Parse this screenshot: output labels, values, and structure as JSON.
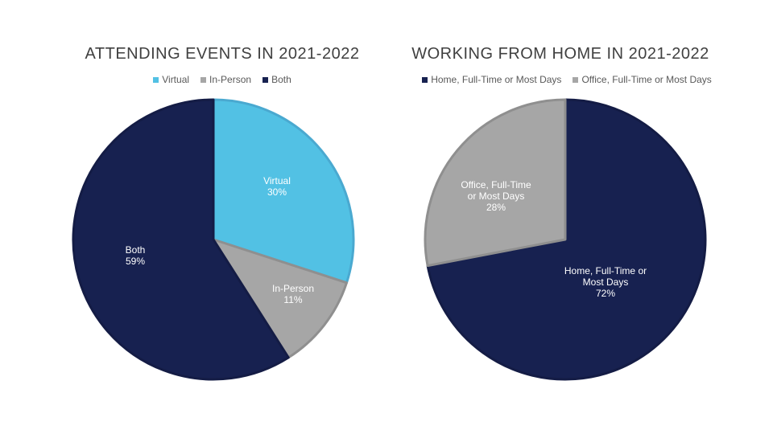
{
  "chart_data": [
    {
      "type": "pie",
      "title": "ATTENDING EVENTS IN 2021-2022",
      "legend_position": "top",
      "slices": [
        {
          "label": "Virtual",
          "value": 30,
          "color": "#52c1e4",
          "label_lines": [
            "Virtual",
            "30%"
          ]
        },
        {
          "label": "In-Person",
          "value": 11,
          "color": "#a6a6a6",
          "label_lines": [
            "In-Person",
            "11%"
          ]
        },
        {
          "label": "Both",
          "value": 59,
          "color": "#172150",
          "label_lines": [
            "Both",
            "59%"
          ]
        }
      ]
    },
    {
      "type": "pie",
      "title": "WORKING FROM HOME IN 2021-2022",
      "legend_position": "top",
      "slices": [
        {
          "label": "Home, Full-Time or Most Days",
          "value": 72,
          "color": "#172150",
          "label_lines": [
            "Home, Full-Time or",
            "Most Days",
            "72%"
          ]
        },
        {
          "label": "Office, Full-Time or Most Days",
          "value": 28,
          "color": "#a6a6a6",
          "label_lines": [
            "Office, Full-Time",
            "or Most Days",
            "28%"
          ]
        }
      ]
    }
  ]
}
